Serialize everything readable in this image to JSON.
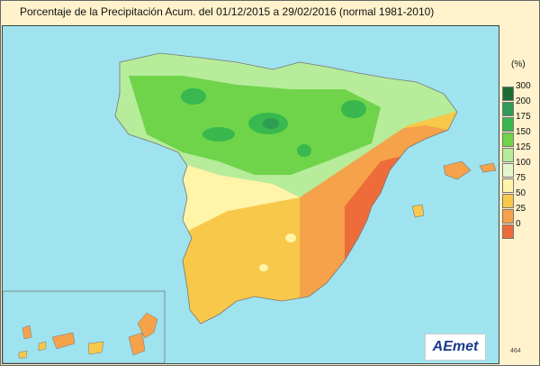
{
  "title": "Porcentaje de la Precipitación Acum. del 01/12/2015 a  29/02/2016  (normal 1981-2010)",
  "legend": {
    "unit": "(%)",
    "items": [
      {
        "label": "300",
        "color": "#1f6b35"
      },
      {
        "label": "200",
        "color": "#2e9c54"
      },
      {
        "label": "175",
        "color": "#38b84e"
      },
      {
        "label": "150",
        "color": "#6fd44a"
      },
      {
        "label": "125",
        "color": "#b6ec9a"
      },
      {
        "label": "100",
        "color": "#e6f5cc"
      },
      {
        "label": "75",
        "color": "#fff4a8"
      },
      {
        "label": "50",
        "color": "#f7c84a"
      },
      {
        "label": "25",
        "color": "#f5a24a"
      },
      {
        "label": "0",
        "color": "#ee6b3a"
      }
    ]
  },
  "logo": "AEmet",
  "code": "464",
  "colors": {
    "sea": "#9fe3ef",
    "background": "#fff2cc"
  }
}
